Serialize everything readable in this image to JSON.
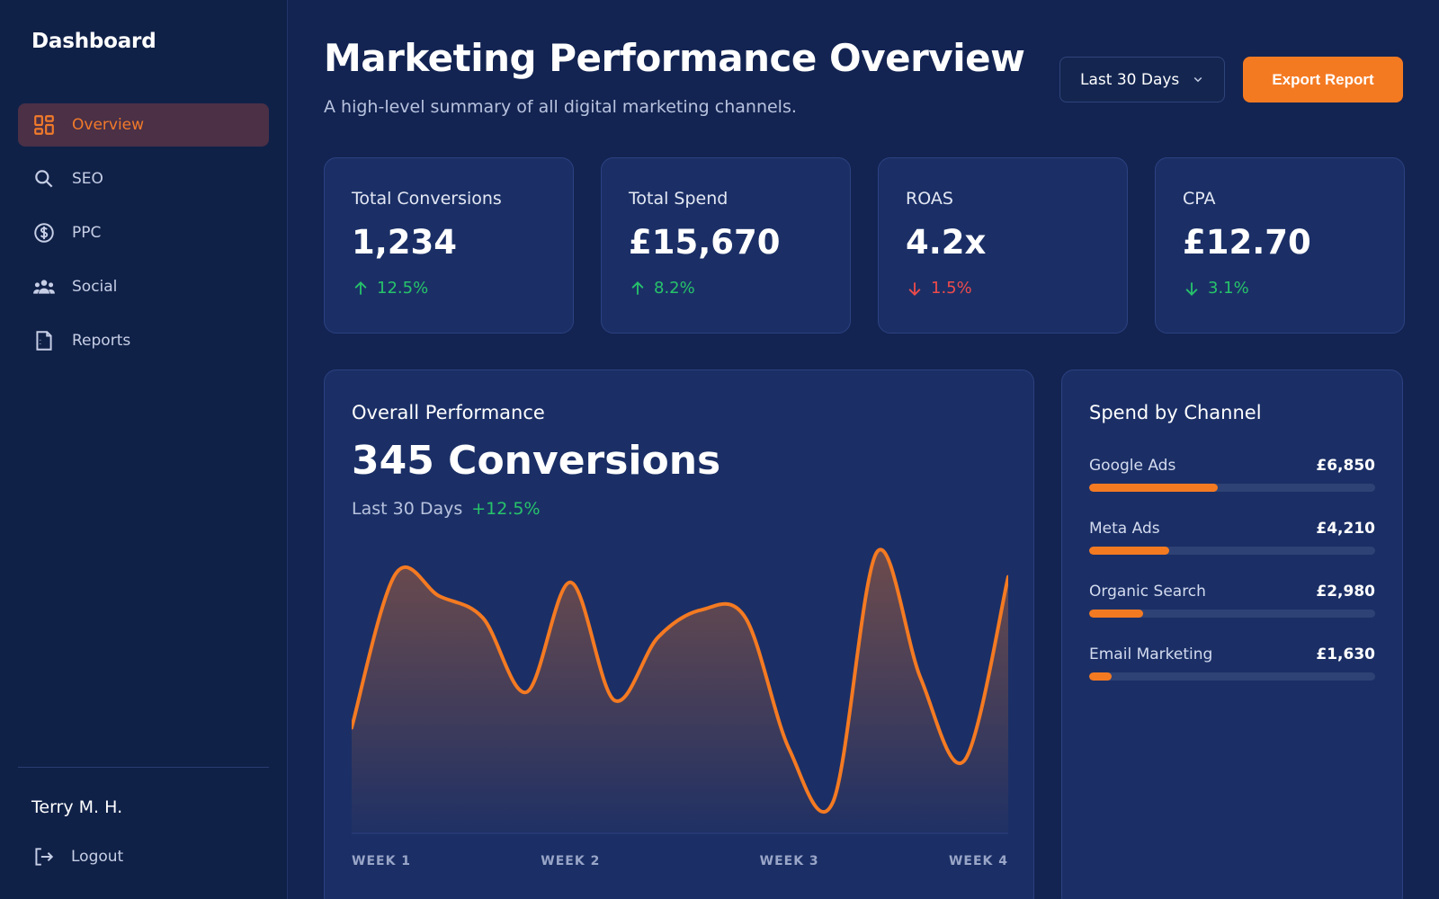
{
  "colors": {
    "accent": "#f47a22",
    "background": "#132452",
    "sidebar": "#102148",
    "card": "#1b2f66",
    "positive": "#27c36a",
    "negative": "#ef4b4b"
  },
  "sidebar": {
    "brand": "Dashboard",
    "items": [
      {
        "label": "Overview",
        "icon": "dashboard-grid-icon",
        "active": true
      },
      {
        "label": "SEO",
        "icon": "search-icon",
        "active": false
      },
      {
        "label": "PPC",
        "icon": "dollar-circle-icon",
        "active": false
      },
      {
        "label": "Social",
        "icon": "people-icon",
        "active": false
      },
      {
        "label": "Reports",
        "icon": "document-icon",
        "active": false
      }
    ],
    "user_name": "Terry M. H.",
    "logout_label": "Logout"
  },
  "header": {
    "title": "Marketing Performance Overview",
    "subtitle": "A high-level summary of all digital marketing channels.",
    "date_range": "Last 30 Days",
    "export_label": "Export Report"
  },
  "kpis": [
    {
      "label": "Total Conversions",
      "value": "1,234",
      "delta": "12.5%",
      "direction": "up",
      "tone": "positive"
    },
    {
      "label": "Total Spend",
      "value": "£15,670",
      "delta": "8.2%",
      "direction": "up",
      "tone": "positive"
    },
    {
      "label": "ROAS",
      "value": "4.2x",
      "delta": "1.5%",
      "direction": "down",
      "tone": "negative"
    },
    {
      "label": "CPA",
      "value": "£12.70",
      "delta": "3.1%",
      "direction": "down",
      "tone": "positive"
    }
  ],
  "performance": {
    "title": "Overall Performance",
    "value": "345 Conversions",
    "period": "Last 30 Days",
    "change": "+12.5%"
  },
  "chart_data": {
    "type": "area",
    "x_labels": [
      "WEEK 1",
      "WEEK 2",
      "WEEK 3",
      "WEEK 4"
    ],
    "values": [
      32,
      88,
      80,
      72,
      45,
      85,
      42,
      65,
      75,
      72,
      24,
      5,
      96,
      50,
      20,
      87
    ],
    "ylim": [
      0,
      100
    ],
    "grid": false
  },
  "channels": {
    "title": "Spend by Channel",
    "items": [
      {
        "name": "Google Ads",
        "amount": "£6,850",
        "share": 0.45
      },
      {
        "name": "Meta Ads",
        "amount": "£4,210",
        "share": 0.28
      },
      {
        "name": "Organic Search",
        "amount": "£2,980",
        "share": 0.19
      },
      {
        "name": "Email Marketing",
        "amount": "£1,630",
        "share": 0.08
      }
    ]
  }
}
